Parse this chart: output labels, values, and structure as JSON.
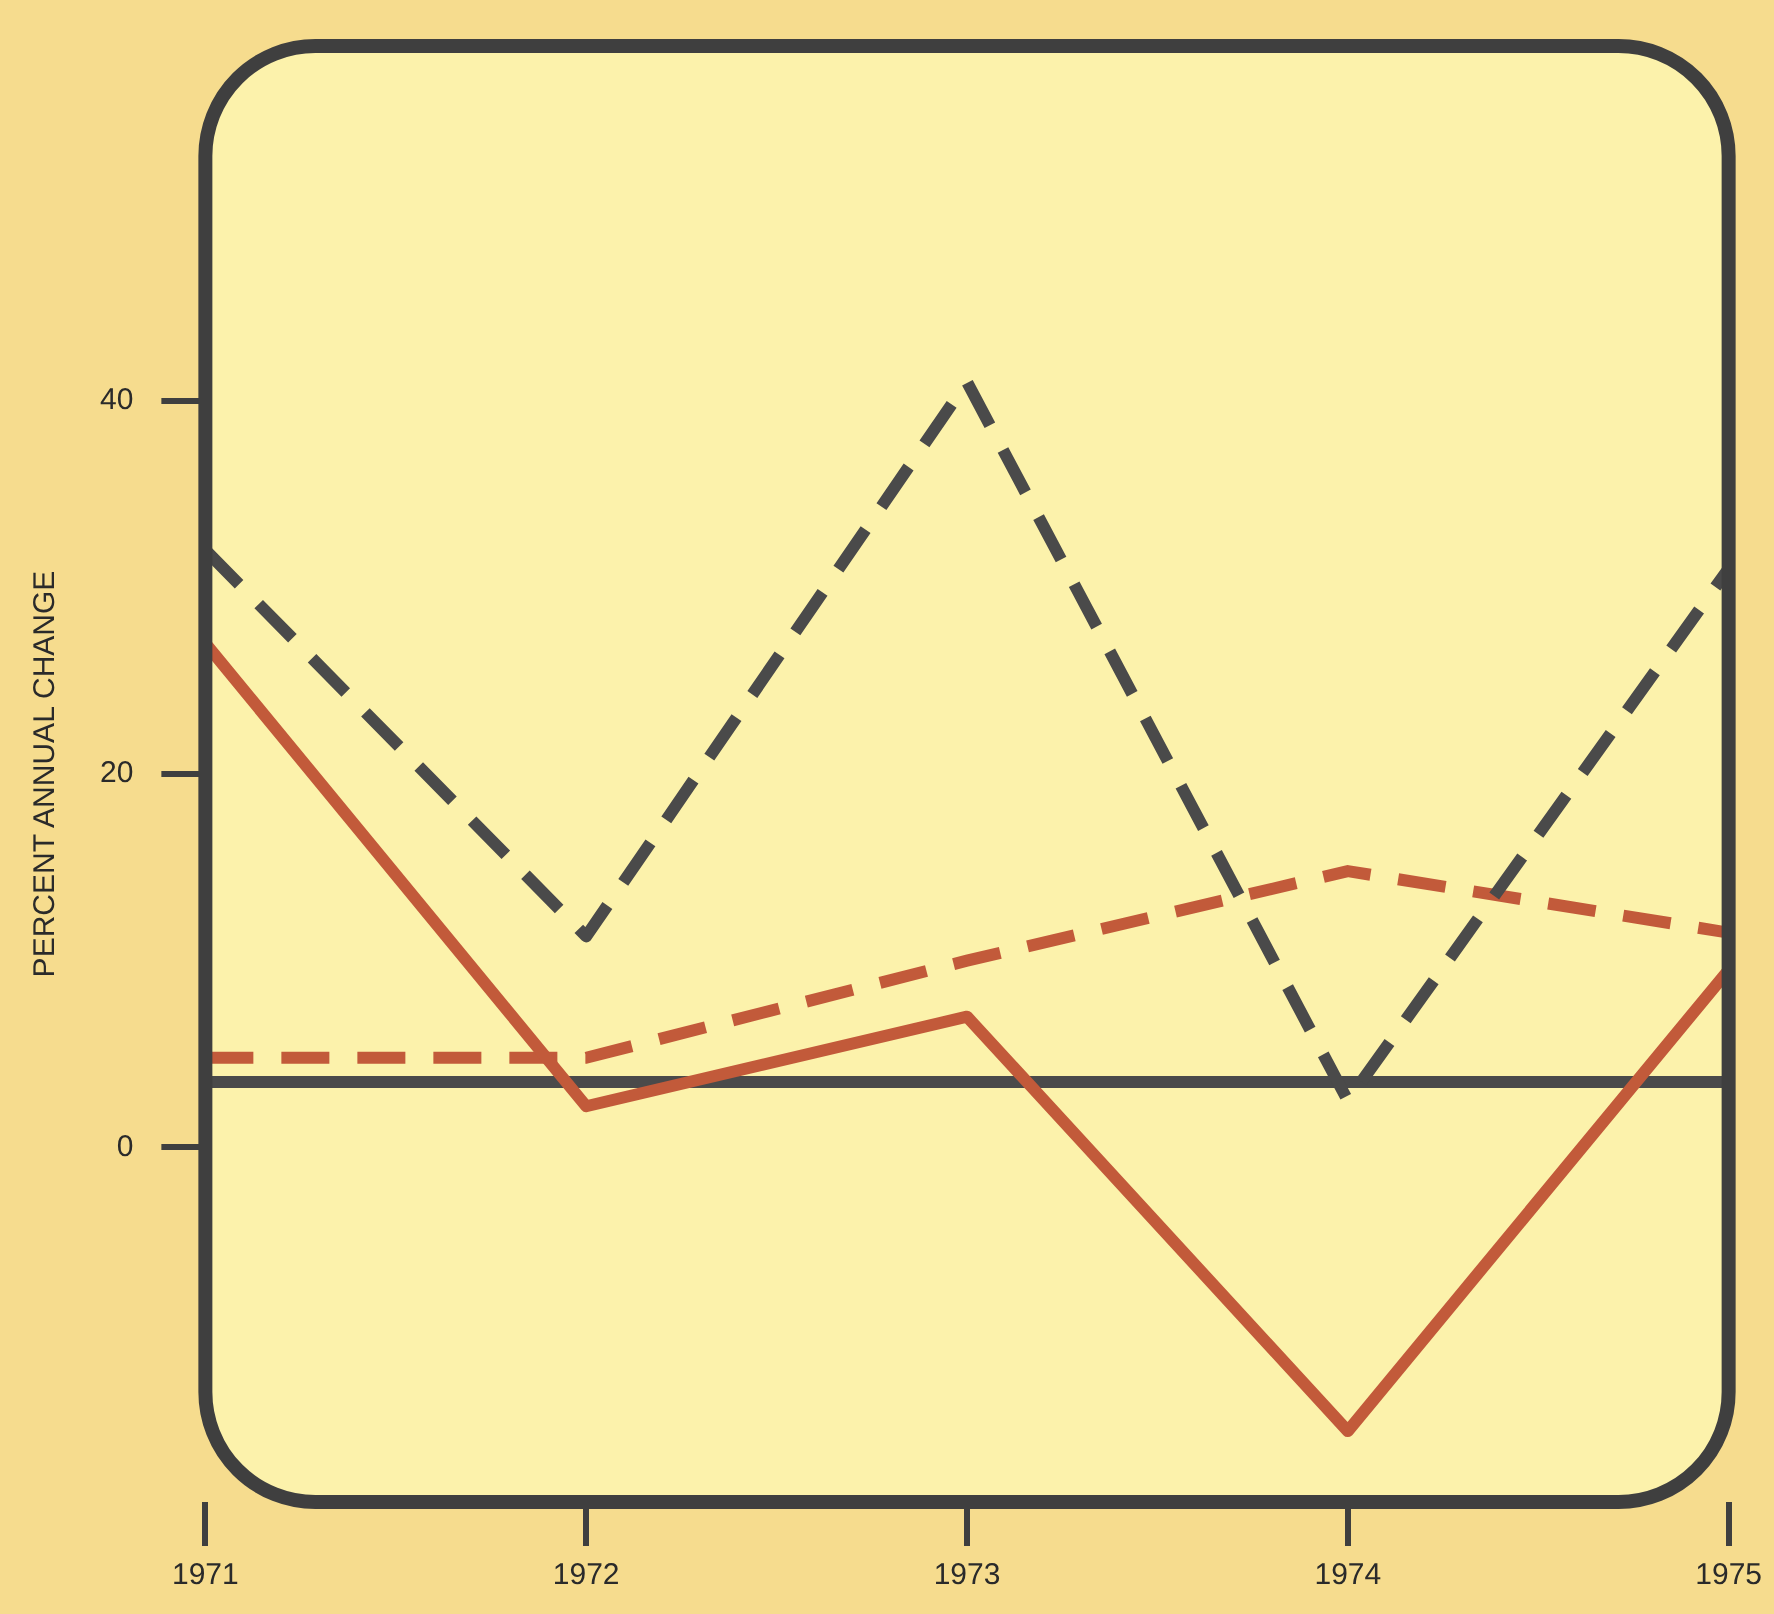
{
  "chart_data": {
    "type": "line",
    "ylabel": "PERCENT ANNUAL CHANGE",
    "x": [
      1971,
      1972,
      1973,
      1974,
      1975
    ],
    "xlim": [
      1971,
      1975
    ],
    "xticks": [
      1971,
      1972,
      1973,
      1974,
      1975
    ],
    "ylim": [
      -19,
      59
    ],
    "yticks": [
      0,
      20,
      40
    ],
    "grid": false,
    "legend": false,
    "marker": "none",
    "series": [
      {
        "color": "#4a4a4a",
        "line_style": "dashed",
        "values": [
          32,
          11.3,
          41,
          2.5,
          31
        ]
      },
      {
        "color": "#c25a3a",
        "line_style": "solid",
        "values": [
          27,
          2.2,
          7,
          -15.2,
          9.5
        ]
      },
      {
        "color": "#c25a3a",
        "line_style": "dashed",
        "values": [
          4.8,
          4.8,
          10,
          14.8,
          11.5
        ]
      },
      {
        "color": "#4a4a4a",
        "line_style": "solid",
        "values": [
          3.5,
          3.5,
          3.5,
          3.5,
          3.5
        ]
      }
    ]
  }
}
